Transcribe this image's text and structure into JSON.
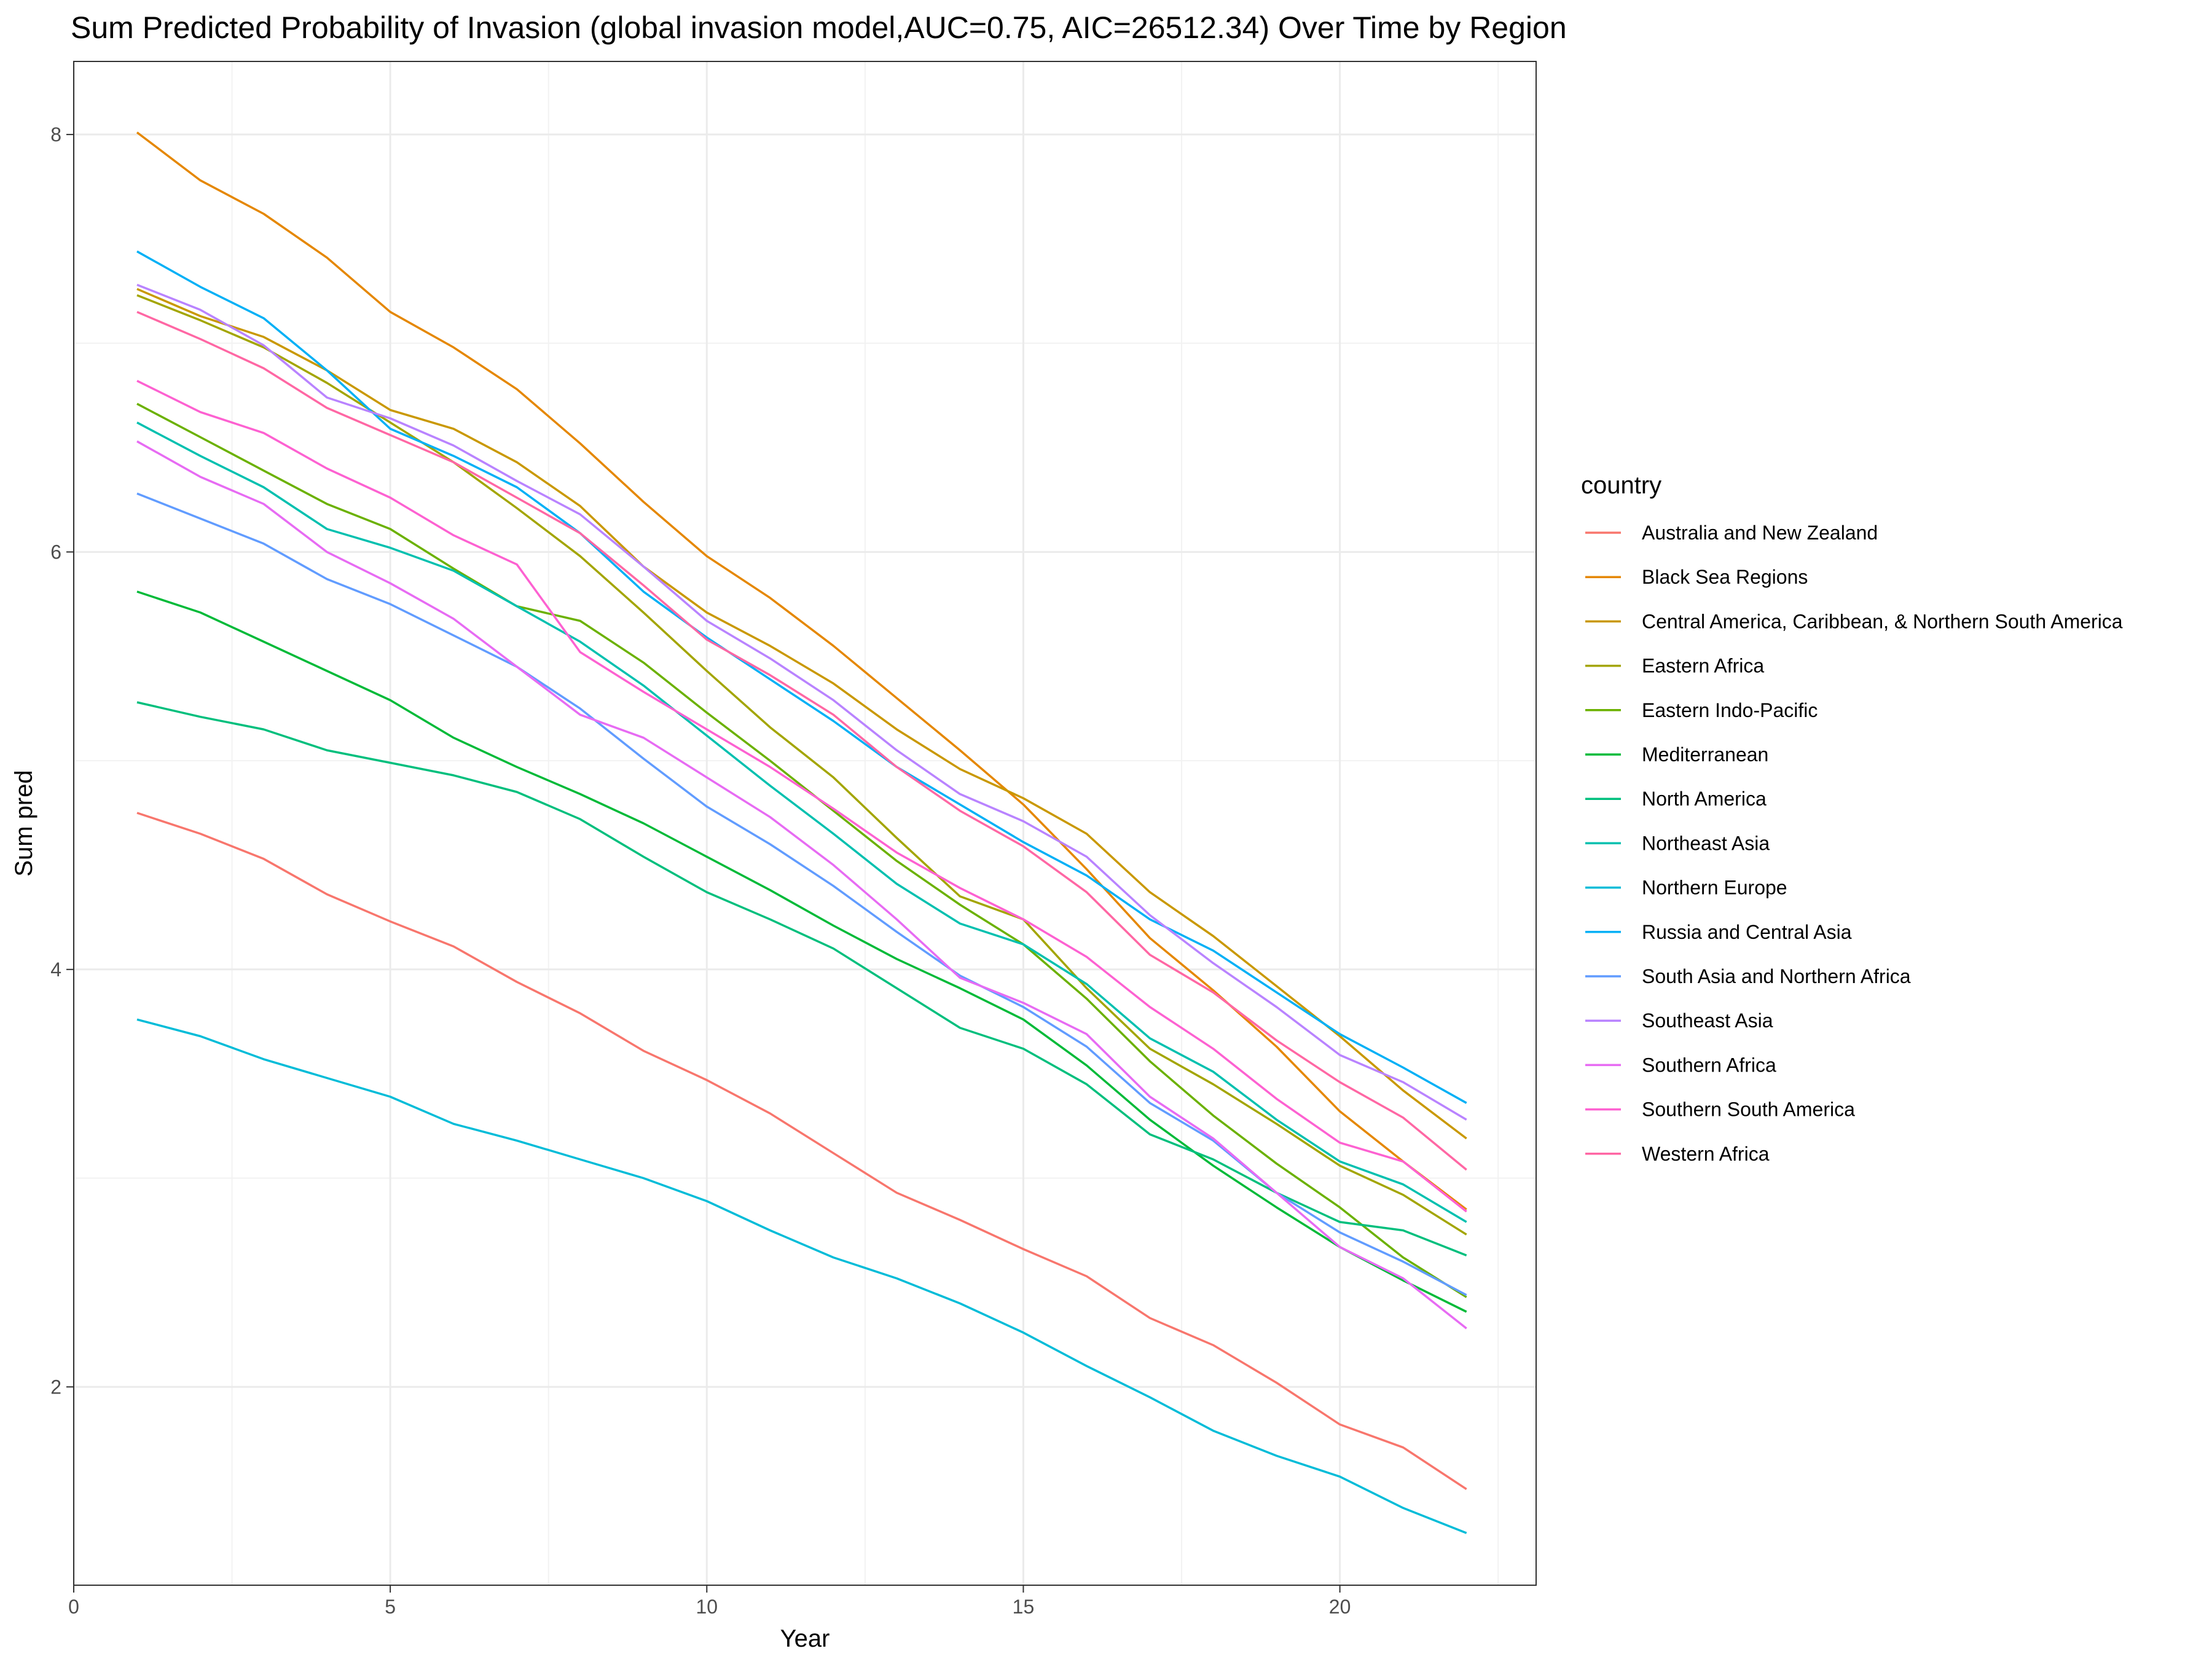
{
  "chart_data": {
    "type": "line",
    "title": "Sum Predicted Probability of Invasion (global invasion model,AUC=0.75, AIC=26512.34) Over Time by Region",
    "xlabel": "Year",
    "ylabel": "Sum pred",
    "xlim": [
      0,
      23.1
    ],
    "ylim": [
      1.05,
      8.35
    ],
    "x_ticks": [
      0,
      5,
      10,
      15,
      20
    ],
    "x_tick_labels": [
      "0",
      "5",
      "10",
      "15",
      "20"
    ],
    "y_ticks": [
      2,
      4,
      6,
      8
    ],
    "y_tick_labels": [
      "2",
      "4",
      "6",
      "8"
    ],
    "grid": true,
    "legend_title": "country",
    "legend_position": "right",
    "x": [
      1,
      2,
      3,
      4,
      5,
      6,
      7,
      8,
      9,
      10,
      11,
      12,
      13,
      14,
      15,
      16,
      17,
      18,
      19,
      20,
      21,
      22
    ],
    "series": [
      {
        "name": "Australia and New Zealand",
        "color": "#F8766D",
        "values": [
          4.75,
          4.65,
          4.53,
          4.36,
          4.23,
          4.11,
          3.94,
          3.79,
          3.61,
          3.47,
          3.31,
          3.12,
          2.93,
          2.8,
          2.66,
          2.53,
          2.33,
          2.2,
          2.02,
          1.82,
          1.71,
          1.51
        ]
      },
      {
        "name": "Black Sea Regions",
        "color": "#E58700",
        "values": [
          8.01,
          7.78,
          7.62,
          7.41,
          7.15,
          6.98,
          6.78,
          6.52,
          6.24,
          5.98,
          5.78,
          5.55,
          5.3,
          5.05,
          4.79,
          4.48,
          4.15,
          3.9,
          3.63,
          3.32,
          3.08,
          2.85
        ]
      },
      {
        "name": "Central America, Caribbean, & Northern South America",
        "color": "#C99800",
        "values": [
          7.26,
          7.13,
          7.03,
          6.87,
          6.68,
          6.59,
          6.43,
          6.22,
          5.93,
          5.71,
          5.55,
          5.37,
          5.15,
          4.96,
          4.82,
          4.65,
          4.37,
          4.16,
          3.92,
          3.68,
          3.42,
          3.19
        ]
      },
      {
        "name": "Eastern Africa",
        "color": "#A3A500",
        "values": [
          7.23,
          7.11,
          6.98,
          6.81,
          6.62,
          6.43,
          6.21,
          5.98,
          5.71,
          5.43,
          5.16,
          4.92,
          4.63,
          4.35,
          4.24,
          3.91,
          3.62,
          3.45,
          3.26,
          3.06,
          2.92,
          2.73
        ]
      },
      {
        "name": "Eastern Indo-Pacific",
        "color": "#6BB100",
        "values": [
          6.71,
          6.55,
          6.39,
          6.23,
          6.11,
          5.92,
          5.74,
          5.67,
          5.47,
          5.23,
          5.0,
          4.76,
          4.52,
          4.31,
          4.12,
          3.86,
          3.56,
          3.3,
          3.07,
          2.86,
          2.62,
          2.43
        ]
      },
      {
        "name": "Mediterranean",
        "color": "#00BA38",
        "values": [
          5.81,
          5.71,
          5.57,
          5.43,
          5.29,
          5.11,
          4.97,
          4.84,
          4.7,
          4.54,
          4.38,
          4.21,
          4.05,
          3.91,
          3.76,
          3.54,
          3.28,
          3.06,
          2.86,
          2.67,
          2.51,
          2.36
        ]
      },
      {
        "name": "North America",
        "color": "#00BF7D",
        "values": [
          5.28,
          5.21,
          5.15,
          5.05,
          4.99,
          4.93,
          4.85,
          4.72,
          4.54,
          4.37,
          4.24,
          4.1,
          3.91,
          3.72,
          3.62,
          3.45,
          3.21,
          3.09,
          2.93,
          2.79,
          2.75,
          2.63
        ]
      },
      {
        "name": "Northeast Asia",
        "color": "#00C0AF",
        "values": [
          6.62,
          6.46,
          6.31,
          6.11,
          6.02,
          5.91,
          5.74,
          5.57,
          5.36,
          5.12,
          4.88,
          4.65,
          4.41,
          4.22,
          4.12,
          3.93,
          3.67,
          3.51,
          3.28,
          3.08,
          2.97,
          2.79
        ]
      },
      {
        "name": "Northern Europe",
        "color": "#00BCD8",
        "values": [
          3.76,
          3.68,
          3.57,
          3.48,
          3.39,
          3.26,
          3.18,
          3.09,
          3.0,
          2.89,
          2.75,
          2.62,
          2.52,
          2.4,
          2.26,
          2.1,
          1.95,
          1.79,
          1.67,
          1.57,
          1.42,
          1.3
        ]
      },
      {
        "name": "Russia and Central Asia",
        "color": "#00B0F6",
        "values": [
          7.44,
          7.27,
          7.12,
          6.87,
          6.59,
          6.46,
          6.31,
          6.09,
          5.81,
          5.59,
          5.39,
          5.19,
          4.97,
          4.79,
          4.61,
          4.45,
          4.24,
          4.09,
          3.89,
          3.69,
          3.53,
          3.36
        ]
      },
      {
        "name": "South Asia and Northern Africa",
        "color": "#619CFF",
        "values": [
          6.28,
          6.16,
          6.04,
          5.87,
          5.75,
          5.6,
          5.45,
          5.25,
          5.01,
          4.78,
          4.6,
          4.4,
          4.18,
          3.97,
          3.82,
          3.63,
          3.36,
          3.18,
          2.93,
          2.74,
          2.6,
          2.44
        ]
      },
      {
        "name": "Southeast Asia",
        "color": "#B983FF",
        "values": [
          7.28,
          7.16,
          6.99,
          6.74,
          6.64,
          6.51,
          6.34,
          6.18,
          5.93,
          5.67,
          5.49,
          5.29,
          5.05,
          4.84,
          4.71,
          4.54,
          4.26,
          4.03,
          3.82,
          3.59,
          3.46,
          3.28
        ]
      },
      {
        "name": "Southern Africa",
        "color": "#E76BF3",
        "values": [
          6.53,
          6.36,
          6.23,
          6.0,
          5.85,
          5.68,
          5.45,
          5.22,
          5.11,
          4.92,
          4.73,
          4.5,
          4.24,
          3.96,
          3.84,
          3.69,
          3.39,
          3.19,
          2.93,
          2.67,
          2.52,
          2.28
        ]
      },
      {
        "name": "Southern South America",
        "color": "#FD61D1",
        "values": [
          6.82,
          6.67,
          6.57,
          6.4,
          6.26,
          6.08,
          5.94,
          5.52,
          5.33,
          5.15,
          4.97,
          4.77,
          4.56,
          4.39,
          4.24,
          4.06,
          3.82,
          3.62,
          3.38,
          3.17,
          3.08,
          2.84
        ]
      },
      {
        "name": "Western Africa",
        "color": "#FF67A4",
        "values": [
          7.15,
          7.02,
          6.88,
          6.69,
          6.56,
          6.43,
          6.26,
          6.09,
          5.84,
          5.58,
          5.41,
          5.22,
          4.97,
          4.76,
          4.59,
          4.37,
          4.07,
          3.89,
          3.66,
          3.46,
          3.29,
          3.04
        ]
      }
    ]
  }
}
